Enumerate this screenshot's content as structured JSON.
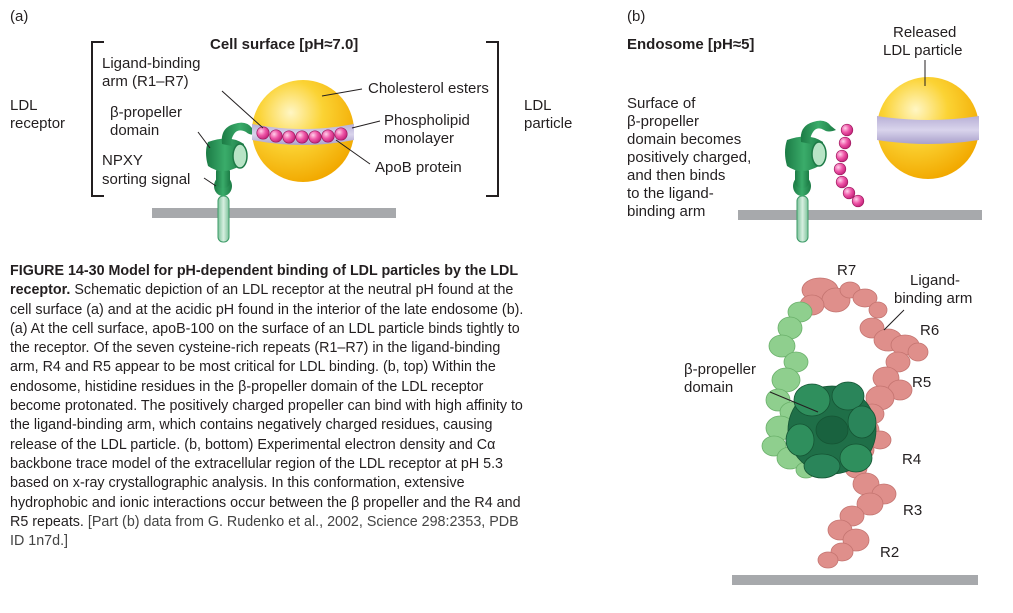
{
  "panel_a": {
    "tag": "(a)",
    "title": "Cell surface [pH≈7.0]",
    "labels": {
      "ldl_receptor": [
        "LDL",
        "receptor"
      ],
      "ligand_binding_arm": [
        "Ligand-binding",
        "arm (R1–R7)"
      ],
      "beta_propeller": [
        "β-propeller",
        "domain"
      ],
      "npxy": [
        "NPXY",
        "sorting signal"
      ],
      "cholesterol": "Cholesterol esters",
      "phospholipid": [
        "Phospholipid",
        "monolayer"
      ],
      "apob": "ApoB protein",
      "ldl_particle": [
        "LDL",
        "particle"
      ]
    }
  },
  "panel_b": {
    "tag": "(b)",
    "title": "Endosome [pH≈5]",
    "labels": {
      "released": [
        "Released",
        "LDL particle"
      ],
      "surface_text": [
        "Surface of",
        "β-propeller",
        "domain becomes",
        "positively charged,",
        "and then binds",
        "to the ligand-",
        "binding arm"
      ],
      "beta_propeller": [
        "β-propeller",
        "domain"
      ],
      "ligand_arm": [
        "Ligand-",
        "binding arm"
      ],
      "repeats": [
        "R7",
        "R6",
        "R5",
        "R4",
        "R3",
        "R2"
      ]
    }
  },
  "caption": {
    "head": "FIGURE 14-30  Model for pH-dependent binding of LDL particles by the LDL receptor.",
    "body": " Schematic depiction of an LDL receptor at the neutral pH found at the cell surface (a) and at the acidic pH found in the interior of the late endosome (b). (a) At the cell surface, apoB-100 on the surface of an LDL particle binds tightly to the receptor. Of the seven cysteine-rich repeats (R1–R7) in the ligand-binding arm, R4 and R5 appear to be most critical for LDL binding. (b, top) Within the endosome, histidine residues in the β-propeller domain of the LDL receptor become protonated. The positively charged propeller can bind with high affinity to the ligand-binding arm, which contains negatively charged residues, causing release of the LDL particle. (b, bottom) Experimental electron density and Cα backbone trace model of the extracellular region of the LDL receptor at pH 5.3 based on x-ray crystallographic analysis. In this conformation, extensive hydrophobic and ionic interactions occur between the β propeller and the R4 and R5 repeats. ",
    "source": "[Part (b) data from G. Rudenko et al., 2002, Science 298:2353, PDB ID 1n7d.]"
  },
  "colors": {
    "membrane": "#a7a9ac",
    "receptor": "#2e9a5c",
    "receptor_dark": "#1d7a46",
    "receptor_light": "#9fd5a9",
    "ldl_core": "#f9c51c",
    "ldl_highlight": "#fff5b8",
    "phospholipid_band": "#c8c0de",
    "apob": "#e8409a",
    "salmon": "#df8f8b",
    "propeller_dark": "#1f6f48",
    "propeller_mid": "#2f8f5d",
    "light_green": "#8fcf8e"
  }
}
